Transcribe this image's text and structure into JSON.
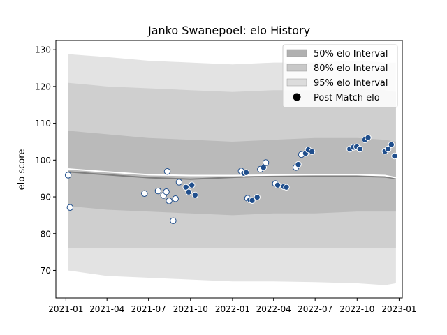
{
  "chart_data": {
    "type": "area",
    "title": "Janko Swanepoel: elo History",
    "xlabel": "",
    "ylabel": "elo score",
    "xlim": [
      "2020-12-10",
      "2023-01-08"
    ],
    "ylim": [
      62.5,
      132.5
    ],
    "x_ticks": [
      "2021-01",
      "2021-04",
      "2021-07",
      "2021-10",
      "2022-01",
      "2022-04",
      "2022-07",
      "2022-10",
      "2023-01"
    ],
    "y_ticks": [
      70,
      80,
      90,
      100,
      110,
      120,
      130
    ],
    "grid": false,
    "legend_position": "top-right",
    "legend": [
      {
        "label": "50% elo Interval",
        "kind": "patch",
        "color": "#b0b0b0"
      },
      {
        "label": "80% elo Interval",
        "kind": "patch",
        "color": "#c8c8c8"
      },
      {
        "label": "95% elo Interval",
        "kind": "patch",
        "color": "#dcdcdc"
      },
      {
        "label": "Post Match elo",
        "kind": "marker",
        "color": "#000000"
      }
    ],
    "colors": {
      "band95": "#e3e3e3",
      "band80": "#cfcfcf",
      "band50": "#bababa",
      "mean_line": "#ffffff",
      "median_line": "#7f7f7f",
      "point_fill_dark": "#1f4e8c",
      "point_fill_light": "#ffffff",
      "point_edge": "#1f4e8c"
    },
    "bands": {
      "dates": [
        "2021-01-05",
        "2021-04-01",
        "2021-07-01",
        "2021-10-01",
        "2022-01-01",
        "2022-04-01",
        "2022-07-01",
        "2022-10-01",
        "2022-12-01",
        "2022-12-25"
      ],
      "p95_low": [
        70.0,
        68.5,
        68.0,
        67.5,
        67.0,
        67.0,
        66.8,
        66.5,
        66.0,
        66.5
      ],
      "p80_low": [
        76.0,
        76.0,
        76.0,
        76.0,
        76.0,
        76.0,
        76.0,
        76.0,
        76.0,
        76.0
      ],
      "p50_low": [
        87.5,
        86.5,
        86.0,
        85.5,
        85.0,
        85.5,
        85.5,
        86.0,
        86.0,
        86.0
      ],
      "median": [
        96.8,
        96.0,
        95.2,
        94.8,
        95.3,
        95.7,
        95.6,
        95.6,
        95.4,
        95.0
      ],
      "mean": [
        97.6,
        96.8,
        96.0,
        95.8,
        95.8,
        95.9,
        96.0,
        96.0,
        95.8,
        95.2
      ],
      "p50_high": [
        108.0,
        107.0,
        106.0,
        105.5,
        105.0,
        105.5,
        106.0,
        106.0,
        105.5,
        105.0
      ],
      "p80_high": [
        121.0,
        120.0,
        119.5,
        119.0,
        118.5,
        119.0,
        119.0,
        119.5,
        119.0,
        118.5
      ],
      "p95_high": [
        128.8,
        128.0,
        127.0,
        126.5,
        126.0,
        126.5,
        126.5,
        127.0,
        126.5,
        126.5
      ]
    },
    "points": [
      {
        "date": "2021-01-06",
        "elo": 95.9,
        "dark": false
      },
      {
        "date": "2021-01-10",
        "elo": 87.1,
        "dark": false
      },
      {
        "date": "2021-06-22",
        "elo": 90.9,
        "dark": false
      },
      {
        "date": "2021-07-22",
        "elo": 91.6,
        "dark": false
      },
      {
        "date": "2021-08-03",
        "elo": 90.4,
        "dark": false
      },
      {
        "date": "2021-08-09",
        "elo": 91.4,
        "dark": false
      },
      {
        "date": "2021-08-11",
        "elo": 96.9,
        "dark": false
      },
      {
        "date": "2021-08-15",
        "elo": 88.9,
        "dark": false
      },
      {
        "date": "2021-08-24",
        "elo": 83.5,
        "dark": false
      },
      {
        "date": "2021-08-29",
        "elo": 89.5,
        "dark": false
      },
      {
        "date": "2021-09-06",
        "elo": 94.0,
        "dark": false
      },
      {
        "date": "2021-09-21",
        "elo": 92.6,
        "dark": true
      },
      {
        "date": "2021-09-27",
        "elo": 91.3,
        "dark": true
      },
      {
        "date": "2021-10-04",
        "elo": 93.2,
        "dark": true
      },
      {
        "date": "2021-10-11",
        "elo": 90.5,
        "dark": true
      },
      {
        "date": "2022-01-20",
        "elo": 97.0,
        "dark": false
      },
      {
        "date": "2022-01-26",
        "elo": 96.4,
        "dark": true
      },
      {
        "date": "2022-01-31",
        "elo": 96.6,
        "dark": true
      },
      {
        "date": "2022-02-03",
        "elo": 89.6,
        "dark": false
      },
      {
        "date": "2022-02-08",
        "elo": 89.2,
        "dark": true
      },
      {
        "date": "2022-02-13",
        "elo": 89.0,
        "dark": true
      },
      {
        "date": "2022-02-24",
        "elo": 89.9,
        "dark": true
      },
      {
        "date": "2022-03-03",
        "elo": 97.5,
        "dark": false
      },
      {
        "date": "2022-03-10",
        "elo": 98.0,
        "dark": true
      },
      {
        "date": "2022-03-15",
        "elo": 99.3,
        "dark": false
      },
      {
        "date": "2022-04-05",
        "elo": 93.6,
        "dark": false
      },
      {
        "date": "2022-04-10",
        "elo": 93.2,
        "dark": true
      },
      {
        "date": "2022-04-23",
        "elo": 92.8,
        "dark": true
      },
      {
        "date": "2022-04-29",
        "elo": 92.6,
        "dark": true
      },
      {
        "date": "2022-05-20",
        "elo": 98.0,
        "dark": false
      },
      {
        "date": "2022-05-25",
        "elo": 98.8,
        "dark": true
      },
      {
        "date": "2022-06-01",
        "elo": 101.5,
        "dark": false
      },
      {
        "date": "2022-06-10",
        "elo": 101.8,
        "dark": true
      },
      {
        "date": "2022-06-16",
        "elo": 102.8,
        "dark": true
      },
      {
        "date": "2022-06-24",
        "elo": 102.3,
        "dark": true
      },
      {
        "date": "2022-09-15",
        "elo": 103.0,
        "dark": true
      },
      {
        "date": "2022-09-23",
        "elo": 103.5,
        "dark": true
      },
      {
        "date": "2022-09-30",
        "elo": 103.6,
        "dark": true
      },
      {
        "date": "2022-10-07",
        "elo": 103.0,
        "dark": true
      },
      {
        "date": "2022-10-18",
        "elo": 105.5,
        "dark": true
      },
      {
        "date": "2022-10-25",
        "elo": 106.1,
        "dark": true
      },
      {
        "date": "2022-12-01",
        "elo": 102.4,
        "dark": true
      },
      {
        "date": "2022-12-08",
        "elo": 103.0,
        "dark": true
      },
      {
        "date": "2022-12-15",
        "elo": 104.2,
        "dark": true
      },
      {
        "date": "2022-12-22",
        "elo": 101.1,
        "dark": true
      }
    ]
  }
}
